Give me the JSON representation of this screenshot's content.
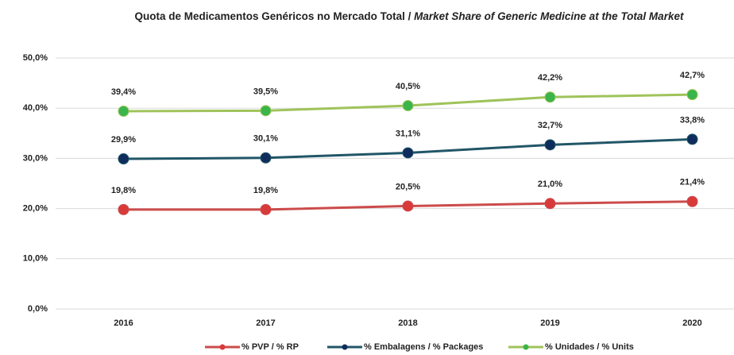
{
  "chart_data": {
    "type": "line",
    "title": [
      "Quota de Medicamentos Genéricos no Mercado Total /",
      "Market Share of Generic Medicine at the Total Market"
    ],
    "categories": [
      "2016",
      "2017",
      "2018",
      "2019",
      "2020"
    ],
    "series": [
      {
        "name": "% PVP / % RP",
        "color": "#cc4b4b",
        "marker_color": "#d83a3a",
        "values": [
          19.8,
          19.8,
          20.5,
          21.0,
          21.4
        ],
        "value_labels": [
          "19,8%",
          "19,8%",
          "20,5%",
          "21,0%",
          "21,4%"
        ]
      },
      {
        "name": "% Embalagens / % Packages",
        "color": "#215668",
        "marker_color": "#0f2d5c",
        "values": [
          29.9,
          30.1,
          31.1,
          32.7,
          33.8
        ],
        "value_labels": [
          "29,9%",
          "30,1%",
          "31,1%",
          "32,7%",
          "33,8%"
        ]
      },
      {
        "name": "% Unidades / % Units",
        "color": "#9fc35a",
        "marker_color": "#3ab54a",
        "values": [
          39.4,
          39.5,
          40.5,
          42.2,
          42.7
        ],
        "value_labels": [
          "39,4%",
          "39,5%",
          "40,5%",
          "42,2%",
          "42,7%"
        ]
      }
    ],
    "ylim": [
      0,
      50
    ],
    "yticks": [
      {
        "value": 0,
        "label": "0,0%"
      },
      {
        "value": 10,
        "label": "10,0%"
      },
      {
        "value": 20,
        "label": "20,0%"
      },
      {
        "value": 30,
        "label": "30,0%"
      },
      {
        "value": 40,
        "label": "40,0%"
      },
      {
        "value": 50,
        "label": "50,0%"
      }
    ],
    "grid": true,
    "legend": "bottom"
  }
}
